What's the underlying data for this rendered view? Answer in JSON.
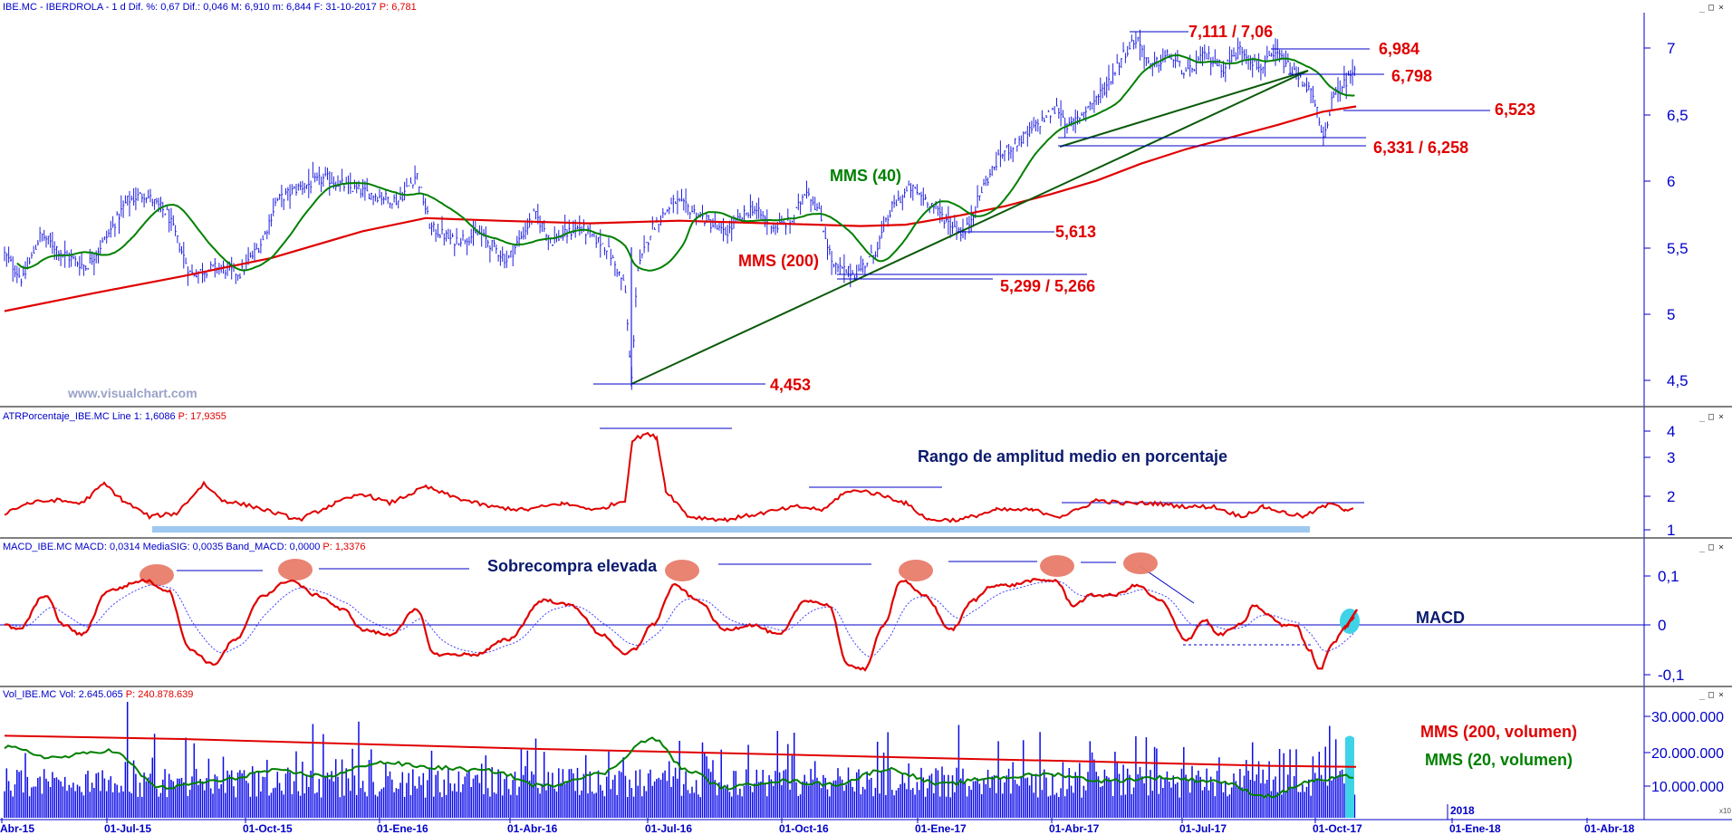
{
  "header": {
    "price_panel": "IBE.MC - IBERDROLA - 1 d  Dif. %: 0,67  Dif.: 0,046  M: 6,910  m: 6,844  F: 31-10-2017",
    "price_panel_p": "P: 6,781",
    "atr_panel": "ATRPorcentaje_IBE.MC  Line 1: 1,6086",
    "atr_panel_p": "P: 17,9355",
    "macd_panel": "MACD_IBE.MC  MACD: 0,0314  MediaSIG: 0,0035  Band_MACD: 0,0000",
    "macd_panel_p": "P: 1,3376",
    "vol_panel": "Vol_IBE.MC  Vol: 2.645.065",
    "vol_panel_p": "P: 240.878.639"
  },
  "watermark": "www.visualchart.com",
  "window_controls": [
    "_",
    "□",
    "×"
  ],
  "chart_data": [
    {
      "type": "line",
      "panel": "price",
      "y_ticks": [
        "7",
        "6,5",
        "6",
        "5,5",
        "5",
        "4,5"
      ],
      "ylim": [
        4.4,
        7.25
      ],
      "annotations": {
        "high": "7,111 / 7,06",
        "r1": "6,984",
        "r2": "6,798",
        "r3": "6,523",
        "s1": "6,331 / 6,258",
        "s2": "5,613",
        "s3": "5,299 / 5,266",
        "low": "4,453",
        "mms40": "MMS (40)",
        "mms200": "MMS (200)"
      },
      "series": [
        {
          "name": "MMS (40)",
          "color": "#008000"
        },
        {
          "name": "MMS (200)",
          "color": "#e00000"
        }
      ],
      "key_points": [
        {
          "x": "2016-06-27",
          "y": 4.453
        },
        {
          "x": "2016-11-15",
          "y": 5.266
        },
        {
          "x": "2017-05-08",
          "y": 7.111
        },
        {
          "x": "2017-09-22",
          "y": 6.258
        },
        {
          "x": "2017-10-31",
          "y": 6.9
        }
      ]
    },
    {
      "type": "line",
      "panel": "atr",
      "title": "Rango de amplitud medio en porcentaje",
      "y_ticks": [
        "4",
        "3",
        "2",
        "1"
      ],
      "ylim": [
        0.8,
        4.2
      ]
    },
    {
      "type": "line",
      "panel": "macd",
      "annotations": {
        "overbought": "Sobrecompra elevada",
        "label": "MACD"
      },
      "y_ticks": [
        "0,1",
        "0",
        "-0,1"
      ],
      "ylim": [
        -0.12,
        0.14
      ]
    },
    {
      "type": "bar",
      "panel": "volume",
      "series": [
        {
          "name": "MMS (200, volumen)",
          "color": "#e00000"
        },
        {
          "name": "MMS (20, volumen)",
          "color": "#008000"
        }
      ],
      "y_ticks": [
        "30.000.000",
        "20.000.000",
        "10.000.000"
      ],
      "ylim": [
        0,
        35000000
      ]
    }
  ],
  "x_axis": {
    "labels": [
      "Abr-15",
      "01-Jul-15",
      "01-Oct-15",
      "01-Ene-16",
      "01-Abr-16",
      "01-Jul-16",
      "01-Oct-16",
      "01-Ene-17",
      "01-Abr-17",
      "01-Jul-17",
      "01-Oct-17",
      "01-Ene-18",
      "01-Abr-18"
    ],
    "year_marker": "2018",
    "corner": "x10"
  }
}
